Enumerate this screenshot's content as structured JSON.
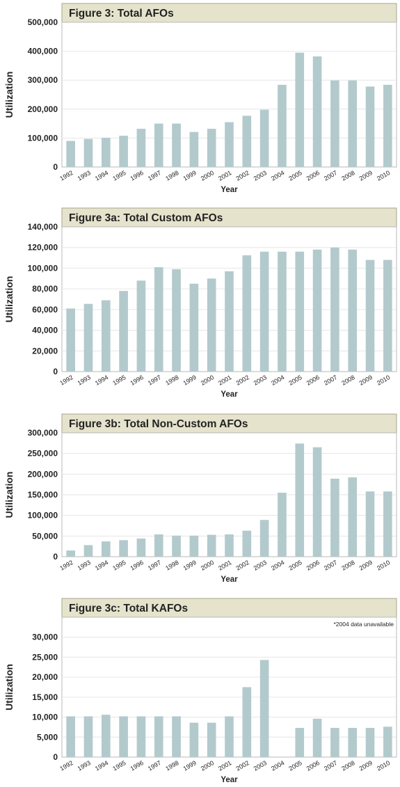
{
  "colors": {
    "bar": "#b3cacd",
    "header_bg": "#e5e3cc",
    "header_border": "#a9a68c",
    "frame": "#b9b9b9",
    "grid": "#e6e6e6",
    "text": "#222222"
  },
  "chart_data": [
    {
      "type": "bar",
      "title": "Figure 3: Total AFOs",
      "xlabel": "Year",
      "ylabel": "Utilization",
      "ylim": [
        0,
        500000
      ],
      "yticks": [
        0,
        100000,
        200000,
        300000,
        400000,
        500000
      ],
      "ytick_labels": [
        "0",
        "100,000",
        "200,000",
        "300,000",
        "400,000",
        "500,000"
      ],
      "categories": [
        "1992",
        "1993",
        "1994",
        "1995",
        "1996",
        "1997",
        "1998",
        "1999",
        "2000",
        "2001",
        "2002",
        "2003",
        "2004",
        "2005",
        "2006",
        "2007",
        "2008",
        "2009",
        "2010"
      ],
      "values": [
        90000,
        97000,
        101000,
        108000,
        132000,
        150000,
        150000,
        121000,
        132000,
        155000,
        177000,
        198000,
        284000,
        395000,
        382000,
        299000,
        299000,
        278000,
        284000
      ],
      "note": ""
    },
    {
      "type": "bar",
      "title": "Figure 3a: Total Custom AFOs",
      "xlabel": "Year",
      "ylabel": "Utilization",
      "ylim": [
        0,
        140000
      ],
      "yticks": [
        0,
        20000,
        40000,
        60000,
        80000,
        100000,
        120000,
        140000
      ],
      "ytick_labels": [
        "0",
        "20,000",
        "40,000",
        "60,000",
        "80,000",
        "100,000",
        "120,000",
        "140,000"
      ],
      "categories": [
        "1992",
        "1993",
        "1994",
        "1995",
        "1996",
        "1997",
        "1998",
        "1999",
        "2000",
        "2001",
        "2002",
        "2003",
        "2004",
        "2005",
        "2006",
        "2007",
        "2008",
        "2009",
        "2010"
      ],
      "values": [
        61000,
        65500,
        69000,
        78000,
        88000,
        101000,
        99000,
        85000,
        90000,
        97000,
        112500,
        116000,
        116000,
        116000,
        118000,
        120000,
        118000,
        108000,
        108000
      ],
      "note": ""
    },
    {
      "type": "bar",
      "title": "Figure 3b: Total Non-Custom AFOs",
      "xlabel": "Year",
      "ylabel": "Utilization",
      "ylim": [
        0,
        300000
      ],
      "yticks": [
        0,
        50000,
        100000,
        150000,
        200000,
        250000,
        300000
      ],
      "ytick_labels": [
        "0",
        "50,000",
        "100,000",
        "150,000",
        "200,000",
        "250,000",
        "300,000"
      ],
      "categories": [
        "1992",
        "1993",
        "1994",
        "1995",
        "1996",
        "1997",
        "1998",
        "1999",
        "2000",
        "2001",
        "2002",
        "2003",
        "2004",
        "2005",
        "2006",
        "2007",
        "2008",
        "2009",
        "2010"
      ],
      "values": [
        15000,
        28000,
        37000,
        40000,
        44000,
        54000,
        51000,
        51000,
        53000,
        54000,
        63000,
        89000,
        155000,
        274000,
        265000,
        189000,
        192000,
        158000,
        158000
      ],
      "note": ""
    },
    {
      "type": "bar",
      "title": "Figure 3c: Total KAFOs",
      "xlabel": "Year",
      "ylabel": "Utilization",
      "ylim": [
        0,
        35000
      ],
      "yticks": [
        0,
        5000,
        10000,
        15000,
        20000,
        25000,
        30000
      ],
      "ytick_labels": [
        "0",
        "5,000",
        "10,000",
        "15,000",
        "20,000",
        "25,000",
        "30,000"
      ],
      "categories": [
        "1992",
        "1993",
        "1994",
        "1995",
        "1996",
        "1997",
        "1998",
        "1999",
        "2000",
        "2001",
        "2002",
        "2003",
        "2004",
        "2005",
        "2006",
        "2007",
        "2008",
        "2009",
        "2010"
      ],
      "values": [
        10200,
        10200,
        10600,
        10200,
        10200,
        10200,
        10200,
        8600,
        8600,
        10200,
        17500,
        24300,
        null,
        7300,
        9600,
        7300,
        7300,
        7300,
        7600
      ],
      "note": "*2004 data unavailable"
    }
  ]
}
